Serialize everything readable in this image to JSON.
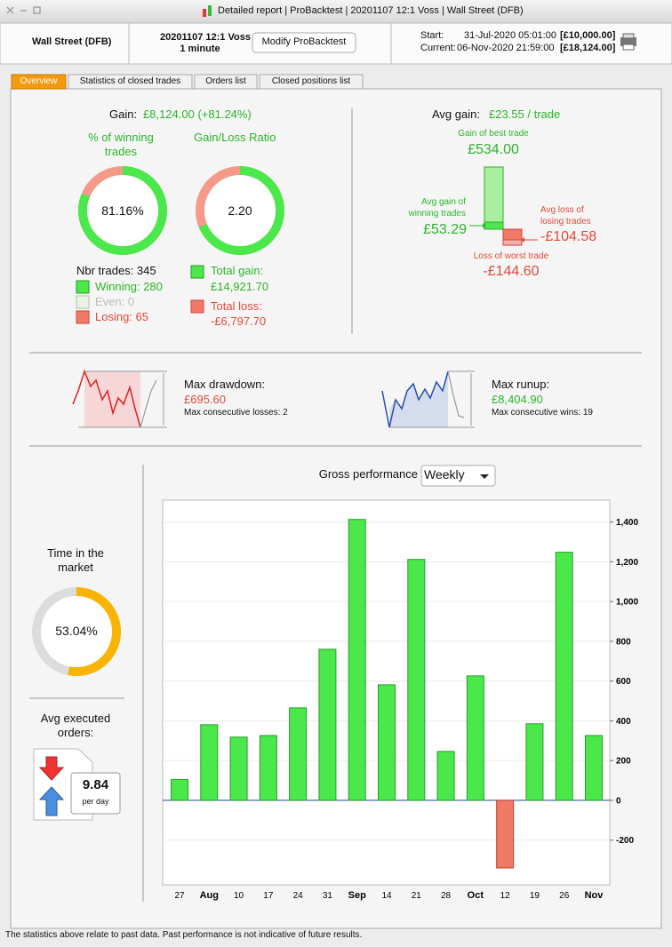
{
  "window": {
    "title": "Detailed report | ProBacktest | 20201107 12:1 Voss | Wall Street (DFB)"
  },
  "header": {
    "instrument": "Wall Street (DFB)",
    "backtest": "20201107 12:1 Voss",
    "timeframe": "1 minute",
    "button": "Modify ProBacktest",
    "start_label": "Start:",
    "start_date": "31-Jul-2020 05:01:00",
    "start_capital": "[£10,000.00]",
    "current_label": "Current:",
    "current_date": "06-Nov-2020 21:59:00",
    "current_capital": "[£18,124.00]"
  },
  "tabs": [
    "Overview",
    "Statistics of closed trades",
    "Orders list",
    "Closed positions list"
  ],
  "gain": {
    "label": "Gain:",
    "value": "£8,124.00 (+81.24%)",
    "winning_title": "% of winning trades",
    "winning_pct": {
      "value": 81.16,
      "label": "81.16%"
    },
    "ratio_title": "Gain/Loss Ratio",
    "ratio": {
      "value": 2.2,
      "label": "2.20"
    },
    "nbr_trades": "Nbr trades: 345",
    "winning": "Winning: 280",
    "even": "Even: 0",
    "losing": "Losing: 65",
    "total_gain_label": "Total gain:",
    "total_gain": "£14,921.70",
    "total_loss_label": "Total loss:",
    "total_loss": "-£6,797.70"
  },
  "avg_gain": {
    "label": "Avg gain:",
    "value": "£23.55 / trade",
    "best_label": "Gain of best trade",
    "best": "£534.00",
    "avg_win_label": "Avg gain of winning trades",
    "avg_win": "£53.29",
    "avg_loss_label": "Avg loss of losing trades",
    "avg_loss": "-£104.58",
    "worst_label": "Loss of worst trade",
    "worst": "-£144.60"
  },
  "drawdown": {
    "label": "Max drawdown:",
    "value": "£695.60",
    "detail": "Max consecutive losses: 2"
  },
  "runup": {
    "label": "Max runup:",
    "value": "£8,404.90",
    "detail": "Max consecutive wins: 19"
  },
  "time_in_market": {
    "title": "Time in the market",
    "pct": {
      "value": 53.04,
      "label": "53.04%"
    }
  },
  "avg_orders": {
    "title": "Avg executed orders:",
    "value": "9.84",
    "unit": "per day"
  },
  "footer": "The statistics above relate to past data. Past performance is not indicative of future results.",
  "chart_data": {
    "type": "bar",
    "title": "Gross performance",
    "period": "Weekly",
    "categories": [
      "27",
      "Aug",
      "10",
      "17",
      "24",
      "31",
      "Sep",
      "14",
      "21",
      "28",
      "Oct",
      "12",
      "19",
      "26",
      "Nov"
    ],
    "values": [
      105,
      380,
      318,
      326,
      465,
      760,
      1413,
      581,
      1212,
      246,
      626,
      -340,
      385,
      1248,
      326
    ],
    "color": "#4ae84a",
    "negative_color": "#f07a66",
    "ylim": [
      -425,
      1510
    ],
    "yticks": [
      -200,
      0,
      200,
      400,
      600,
      800,
      {
        "value": 1000,
        "label": "1,000"
      },
      {
        "value": 1200,
        "label": "1,200"
      },
      {
        "value": 1400,
        "label": "1,400"
      }
    ],
    "grid": true
  }
}
